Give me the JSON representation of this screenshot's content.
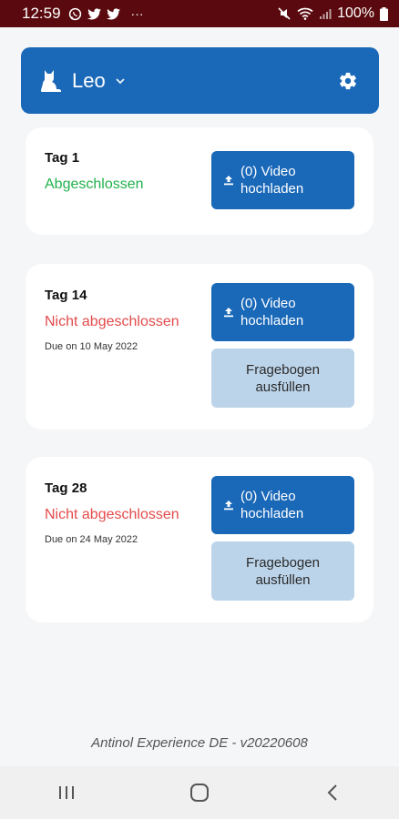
{
  "status_bar": {
    "time": "12:59",
    "battery": "100%",
    "dots": "···"
  },
  "header": {
    "pet_name": "Leo"
  },
  "cards": [
    {
      "day": "Tag 1",
      "status": "Abgeschlossen",
      "upload_line1": "(0) Video",
      "upload_line2": "hochladen"
    },
    {
      "day": "Tag 14",
      "status": "Nicht abgeschlossen",
      "due": "Due on 10 May 2022",
      "upload_line1": "(0) Video",
      "upload_line2": "hochladen",
      "form_line1": "Fragebogen",
      "form_line2": "ausfüllen"
    },
    {
      "day": "Tag 28",
      "status": "Nicht abgeschlossen",
      "due": "Due on 24 May 2022",
      "upload_line1": "(0) Video",
      "upload_line2": "hochladen",
      "form_line1": "Fragebogen",
      "form_line2": "ausfüllen"
    }
  ],
  "footer": {
    "version_text": "Antinol Experience DE - v20220608"
  },
  "colors": {
    "primary": "#1a68b8",
    "success": "#22b14c",
    "error": "#e34a4a",
    "secondary_button": "#bcd4ea"
  }
}
